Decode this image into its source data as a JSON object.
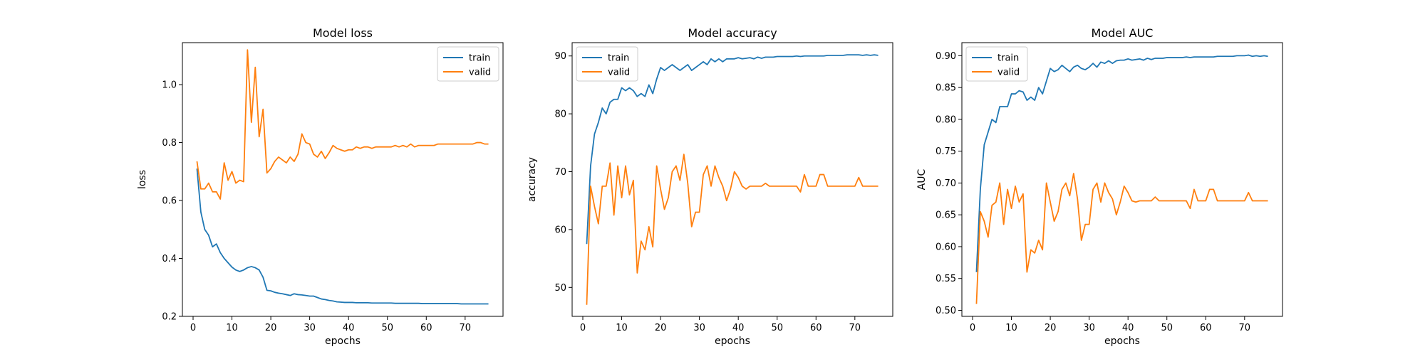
{
  "chart_data": [
    {
      "type": "line",
      "title": "Model loss",
      "xlabel": "epochs",
      "ylabel": "loss",
      "xlim": [
        -2.75,
        79.75
      ],
      "ylim": [
        0.2,
        1.145
      ],
      "xticks": [
        0,
        10,
        20,
        30,
        40,
        50,
        60,
        70
      ],
      "yticks": [
        0.2,
        0.4,
        0.6,
        0.8,
        1.0
      ],
      "ytick_labels": [
        "0.2",
        "0.4",
        "0.6",
        "0.8",
        "1.0"
      ],
      "grid": false,
      "legend": "upper right",
      "x": [
        1,
        2,
        3,
        4,
        5,
        6,
        7,
        8,
        9,
        10,
        11,
        12,
        13,
        14,
        15,
        16,
        17,
        18,
        19,
        20,
        21,
        22,
        23,
        24,
        25,
        26,
        27,
        28,
        29,
        30,
        31,
        32,
        33,
        34,
        35,
        36,
        37,
        38,
        39,
        40,
        41,
        42,
        43,
        44,
        45,
        46,
        47,
        48,
        49,
        50,
        51,
        52,
        53,
        54,
        55,
        56,
        57,
        58,
        59,
        60,
        61,
        62,
        63,
        64,
        65,
        66,
        67,
        68,
        69,
        70,
        71,
        72,
        73,
        74,
        75,
        76
      ],
      "series": [
        {
          "name": "train",
          "color": "#1f77b4",
          "values": [
            0.71,
            0.56,
            0.5,
            0.48,
            0.44,
            0.45,
            0.42,
            0.4,
            0.385,
            0.37,
            0.36,
            0.355,
            0.36,
            0.368,
            0.372,
            0.368,
            0.36,
            0.335,
            0.29,
            0.288,
            0.283,
            0.28,
            0.278,
            0.275,
            0.272,
            0.278,
            0.275,
            0.274,
            0.272,
            0.27,
            0.27,
            0.265,
            0.26,
            0.258,
            0.255,
            0.253,
            0.25,
            0.249,
            0.248,
            0.248,
            0.248,
            0.247,
            0.247,
            0.247,
            0.247,
            0.246,
            0.246,
            0.246,
            0.246,
            0.246,
            0.246,
            0.245,
            0.245,
            0.245,
            0.245,
            0.245,
            0.245,
            0.245,
            0.244,
            0.244,
            0.244,
            0.244,
            0.244,
            0.244,
            0.244,
            0.244,
            0.244,
            0.244,
            0.243,
            0.243,
            0.243,
            0.243,
            0.243,
            0.243,
            0.243,
            0.243
          ]
        },
        {
          "name": "valid",
          "color": "#ff7f0e",
          "values": [
            0.735,
            0.64,
            0.64,
            0.66,
            0.63,
            0.63,
            0.605,
            0.73,
            0.67,
            0.7,
            0.66,
            0.67,
            0.665,
            1.12,
            0.87,
            1.06,
            0.82,
            0.915,
            0.695,
            0.71,
            0.735,
            0.75,
            0.74,
            0.73,
            0.75,
            0.735,
            0.76,
            0.83,
            0.8,
            0.795,
            0.76,
            0.75,
            0.77,
            0.745,
            0.765,
            0.79,
            0.78,
            0.775,
            0.77,
            0.775,
            0.775,
            0.785,
            0.78,
            0.785,
            0.785,
            0.78,
            0.785,
            0.785,
            0.785,
            0.785,
            0.785,
            0.79,
            0.785,
            0.79,
            0.785,
            0.795,
            0.785,
            0.79,
            0.79,
            0.79,
            0.79,
            0.79,
            0.795,
            0.795,
            0.795,
            0.795,
            0.795,
            0.795,
            0.795,
            0.795,
            0.795,
            0.795,
            0.8,
            0.8,
            0.795,
            0.795
          ]
        }
      ]
    },
    {
      "type": "line",
      "title": "Model accuracy",
      "xlabel": "epochs",
      "ylabel": "accuracy",
      "xlim": [
        -2.75,
        79.75
      ],
      "ylim": [
        45.0,
        92.3
      ],
      "xticks": [
        0,
        10,
        20,
        30,
        40,
        50,
        60,
        70
      ],
      "yticks": [
        50,
        60,
        70,
        80,
        90
      ],
      "ytick_labels": [
        "50",
        "60",
        "70",
        "80",
        "90"
      ],
      "grid": false,
      "legend": "upper left",
      "x": [
        1,
        2,
        3,
        4,
        5,
        6,
        7,
        8,
        9,
        10,
        11,
        12,
        13,
        14,
        15,
        16,
        17,
        18,
        19,
        20,
        21,
        22,
        23,
        24,
        25,
        26,
        27,
        28,
        29,
        30,
        31,
        32,
        33,
        34,
        35,
        36,
        37,
        38,
        39,
        40,
        41,
        42,
        43,
        44,
        45,
        46,
        47,
        48,
        49,
        50,
        51,
        52,
        53,
        54,
        55,
        56,
        57,
        58,
        59,
        60,
        61,
        62,
        63,
        64,
        65,
        66,
        67,
        68,
        69,
        70,
        71,
        72,
        73,
        74,
        75,
        76
      ],
      "series": [
        {
          "name": "train",
          "color": "#1f77b4",
          "values": [
            57.5,
            71.0,
            76.5,
            78.5,
            81.0,
            80.0,
            82.0,
            82.5,
            82.5,
            84.5,
            84.0,
            84.5,
            84.0,
            83.0,
            83.5,
            83.0,
            85.0,
            83.5,
            86.0,
            88.0,
            87.5,
            88.0,
            88.5,
            88.0,
            87.5,
            88.0,
            88.5,
            87.5,
            88.0,
            88.5,
            89.0,
            88.5,
            89.5,
            89.0,
            89.5,
            89.0,
            89.5,
            89.5,
            89.5,
            89.7,
            89.5,
            89.6,
            89.7,
            89.5,
            89.8,
            89.6,
            89.8,
            89.8,
            89.8,
            89.9,
            89.9,
            89.9,
            89.9,
            89.9,
            90.0,
            89.9,
            90.0,
            90.0,
            90.0,
            90.0,
            90.0,
            90.0,
            90.1,
            90.1,
            90.1,
            90.1,
            90.1,
            90.2,
            90.2,
            90.2,
            90.2,
            90.1,
            90.2,
            90.1,
            90.2,
            90.1
          ]
        },
        {
          "name": "valid",
          "color": "#ff7f0e",
          "values": [
            47.0,
            67.5,
            64.0,
            61.0,
            67.5,
            67.5,
            71.5,
            62.5,
            71.0,
            65.5,
            71.0,
            66.0,
            68.5,
            52.5,
            58.0,
            56.5,
            60.5,
            57.0,
            71.0,
            67.0,
            63.5,
            65.5,
            70.0,
            71.0,
            68.5,
            73.0,
            68.0,
            60.5,
            63.0,
            63.0,
            69.5,
            71.0,
            67.5,
            71.0,
            69.0,
            67.5,
            65.0,
            67.0,
            70.0,
            69.0,
            67.5,
            67.0,
            67.5,
            67.5,
            67.5,
            67.5,
            68.0,
            67.5,
            67.5,
            67.5,
            67.5,
            67.5,
            67.5,
            67.5,
            67.5,
            66.5,
            69.5,
            67.5,
            67.5,
            67.5,
            69.5,
            69.5,
            67.5,
            67.5,
            67.5,
            67.5,
            67.5,
            67.5,
            67.5,
            67.5,
            69.0,
            67.5,
            67.5,
            67.5,
            67.5,
            67.5
          ]
        }
      ]
    },
    {
      "type": "line",
      "title": "Model AUC",
      "xlabel": "epochs",
      "ylabel": "AUC",
      "xlim": [
        -2.75,
        79.75
      ],
      "ylim": [
        0.4905,
        0.9205
      ],
      "xticks": [
        0,
        10,
        20,
        30,
        40,
        50,
        60,
        70
      ],
      "yticks": [
        0.5,
        0.55,
        0.6,
        0.65,
        0.7,
        0.75,
        0.8,
        0.85,
        0.9
      ],
      "ytick_labels": [
        "0.50",
        "0.55",
        "0.60",
        "0.65",
        "0.70",
        "0.75",
        "0.80",
        "0.85",
        "0.90"
      ],
      "grid": false,
      "legend": "upper left",
      "x": [
        1,
        2,
        3,
        4,
        5,
        6,
        7,
        8,
        9,
        10,
        11,
        12,
        13,
        14,
        15,
        16,
        17,
        18,
        19,
        20,
        21,
        22,
        23,
        24,
        25,
        26,
        27,
        28,
        29,
        30,
        31,
        32,
        33,
        34,
        35,
        36,
        37,
        38,
        39,
        40,
        41,
        42,
        43,
        44,
        45,
        46,
        47,
        48,
        49,
        50,
        51,
        52,
        53,
        54,
        55,
        56,
        57,
        58,
        59,
        60,
        61,
        62,
        63,
        64,
        65,
        66,
        67,
        68,
        69,
        70,
        71,
        72,
        73,
        74,
        75,
        76
      ],
      "series": [
        {
          "name": "train",
          "color": "#1f77b4",
          "values": [
            0.56,
            0.69,
            0.76,
            0.78,
            0.8,
            0.795,
            0.82,
            0.82,
            0.82,
            0.84,
            0.84,
            0.845,
            0.843,
            0.83,
            0.835,
            0.83,
            0.85,
            0.84,
            0.86,
            0.88,
            0.875,
            0.878,
            0.885,
            0.88,
            0.875,
            0.882,
            0.885,
            0.88,
            0.878,
            0.882,
            0.888,
            0.882,
            0.89,
            0.888,
            0.892,
            0.888,
            0.892,
            0.893,
            0.893,
            0.895,
            0.893,
            0.894,
            0.895,
            0.893,
            0.896,
            0.894,
            0.896,
            0.896,
            0.896,
            0.897,
            0.897,
            0.897,
            0.897,
            0.897,
            0.898,
            0.897,
            0.898,
            0.898,
            0.898,
            0.898,
            0.898,
            0.898,
            0.899,
            0.899,
            0.899,
            0.899,
            0.899,
            0.9,
            0.9,
            0.9,
            0.901,
            0.899,
            0.9,
            0.899,
            0.9,
            0.899
          ]
        },
        {
          "name": "valid",
          "color": "#ff7f0e",
          "values": [
            0.51,
            0.655,
            0.64,
            0.615,
            0.665,
            0.67,
            0.7,
            0.635,
            0.69,
            0.66,
            0.695,
            0.67,
            0.683,
            0.56,
            0.595,
            0.59,
            0.61,
            0.595,
            0.7,
            0.67,
            0.64,
            0.655,
            0.69,
            0.7,
            0.68,
            0.715,
            0.675,
            0.61,
            0.635,
            0.635,
            0.69,
            0.7,
            0.67,
            0.7,
            0.685,
            0.675,
            0.65,
            0.67,
            0.695,
            0.685,
            0.672,
            0.67,
            0.672,
            0.672,
            0.672,
            0.672,
            0.678,
            0.672,
            0.672,
            0.672,
            0.672,
            0.672,
            0.672,
            0.672,
            0.672,
            0.66,
            0.69,
            0.672,
            0.672,
            0.672,
            0.69,
            0.69,
            0.672,
            0.672,
            0.672,
            0.672,
            0.672,
            0.672,
            0.672,
            0.672,
            0.685,
            0.672,
            0.672,
            0.672,
            0.672,
            0.672
          ]
        }
      ]
    }
  ]
}
